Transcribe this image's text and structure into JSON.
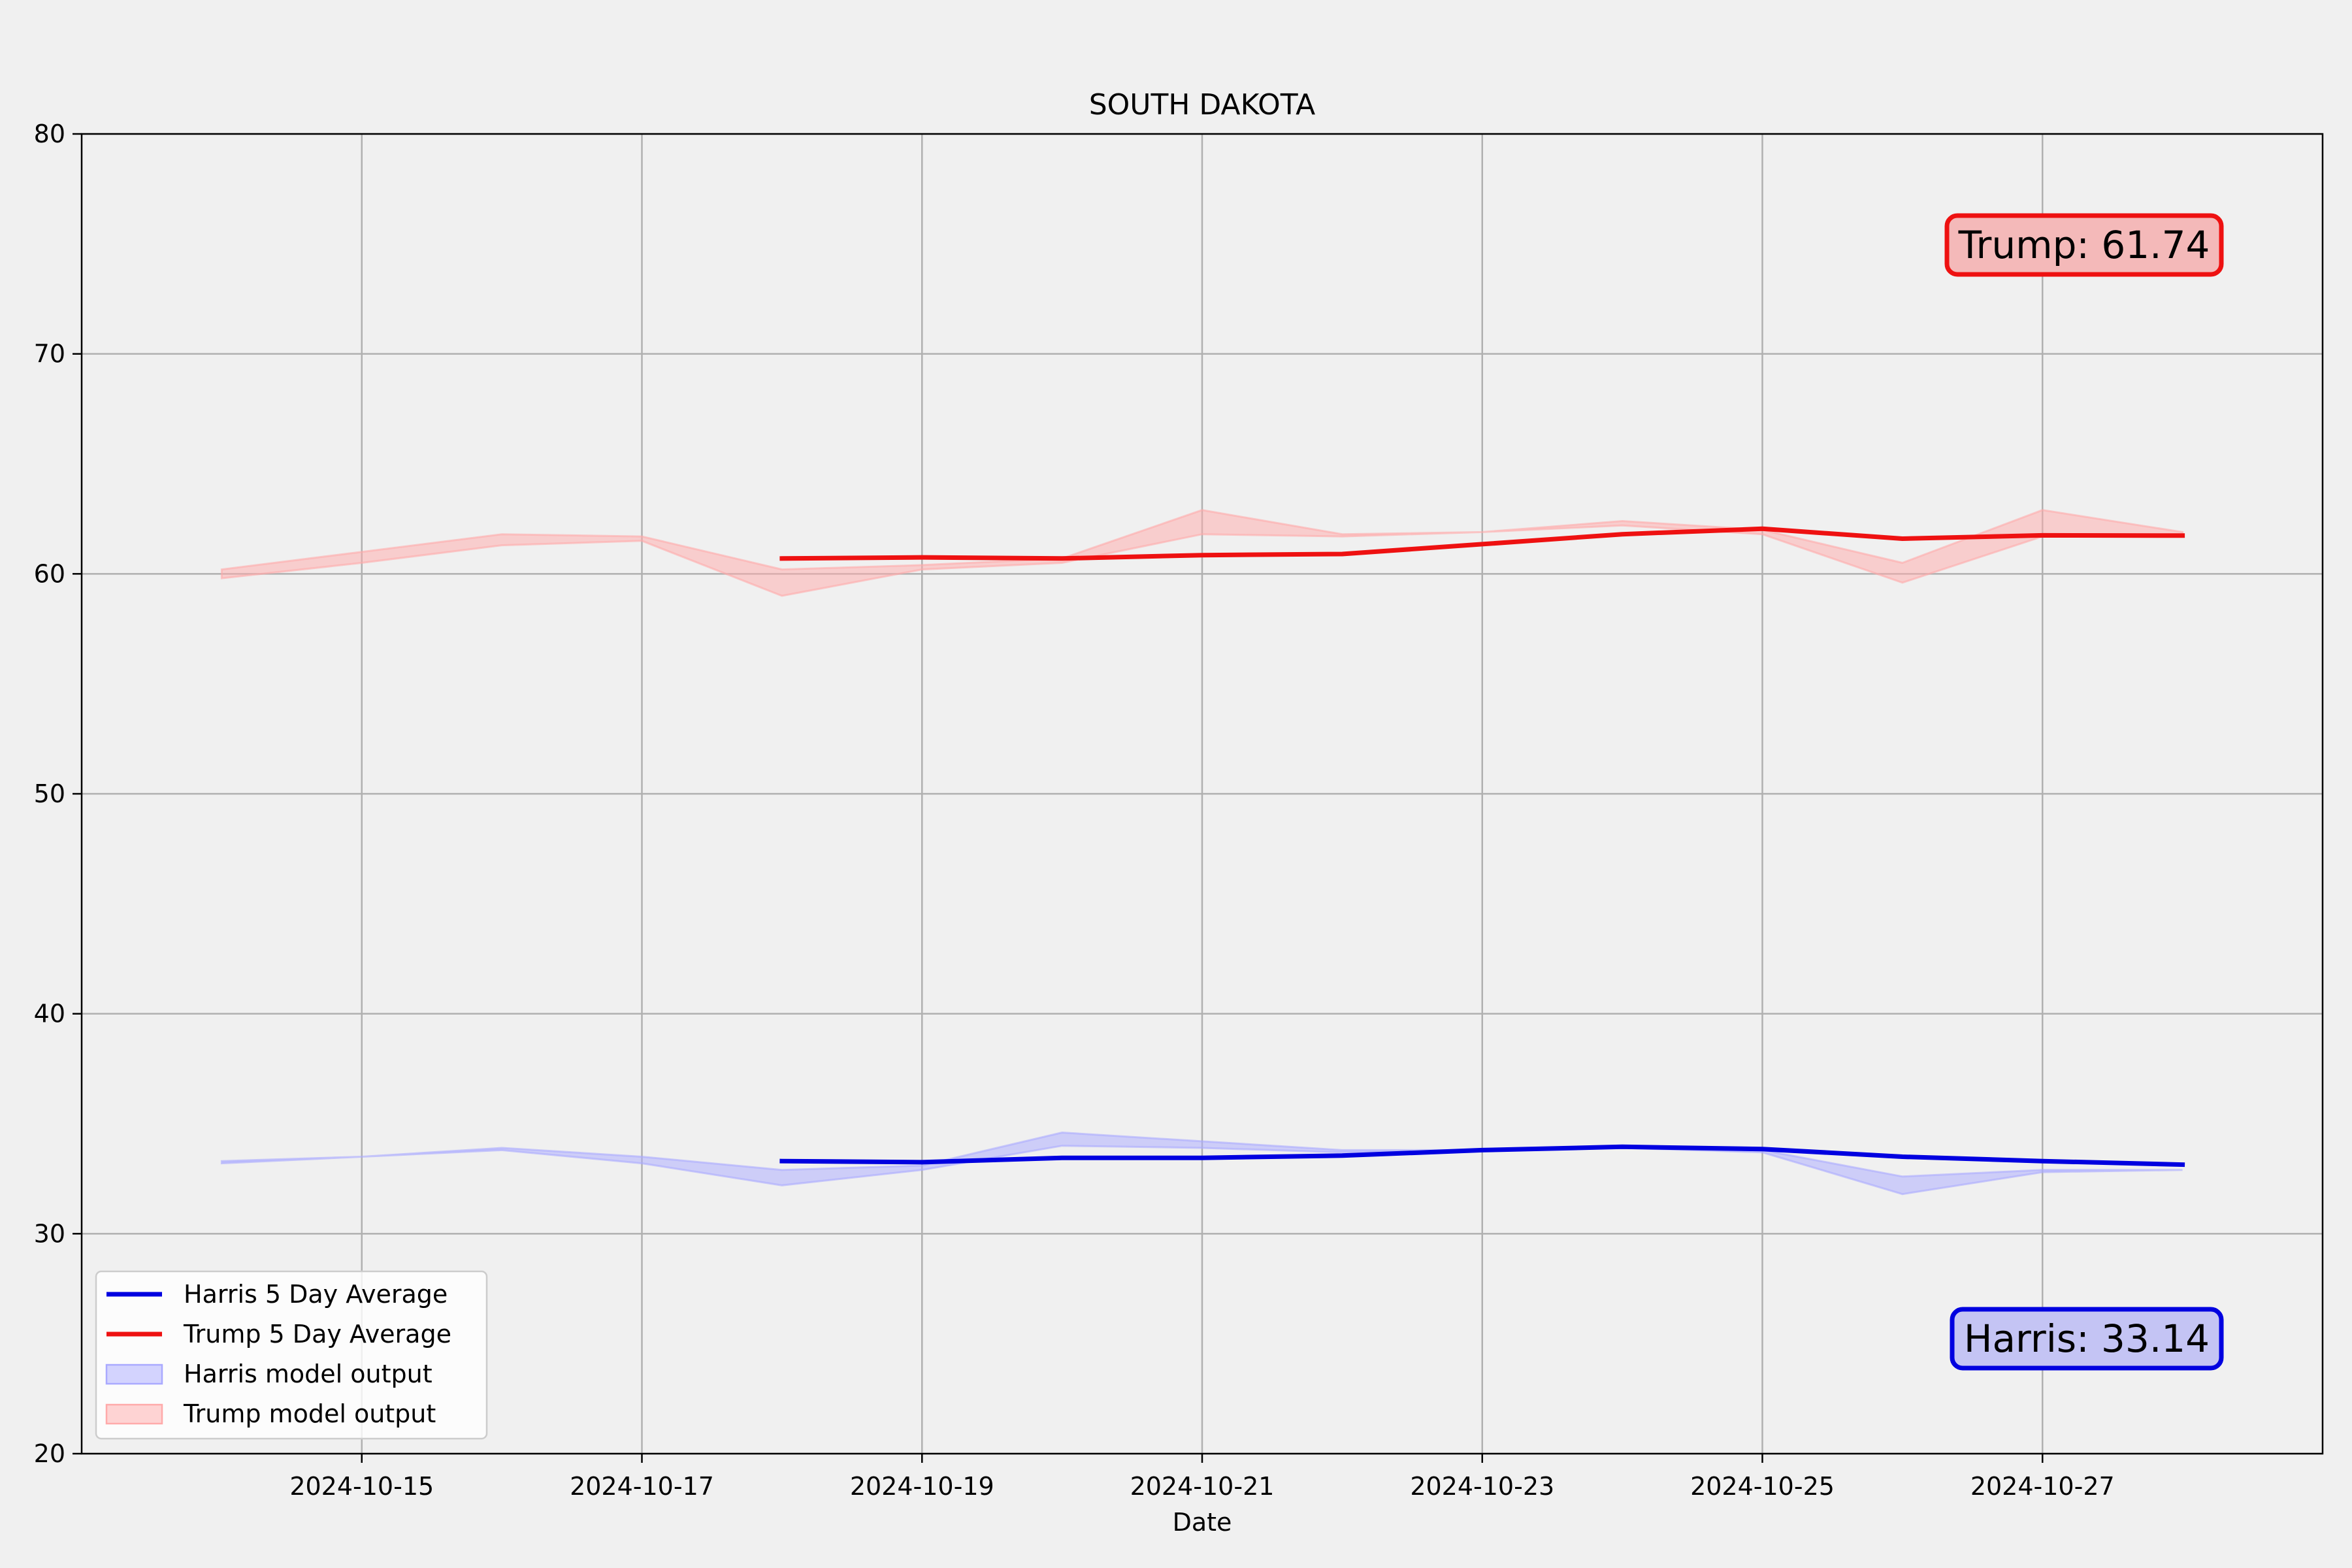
{
  "chart_data": {
    "type": "line",
    "title": "SOUTH DAKOTA",
    "xlabel": "Date",
    "ylabel": "",
    "ylim": [
      20,
      80
    ],
    "yticks": [
      "20",
      "30",
      "40",
      "50",
      "60",
      "70",
      "80"
    ],
    "xlim": [
      "2024-10-13",
      "2024-10-29"
    ],
    "xticks": [
      "2024-10-15",
      "2024-10-17",
      "2024-10-19",
      "2024-10-21",
      "2024-10-23",
      "2024-10-25",
      "2024-10-27"
    ],
    "grid": true,
    "legend_position": "lower-left",
    "series": [
      {
        "name": "Harris 5 Day Average",
        "color": "#0000e0",
        "x": [
          "2024-10-18",
          "2024-10-19",
          "2024-10-20",
          "2024-10-21",
          "2024-10-22",
          "2024-10-23",
          "2024-10-24",
          "2024-10-25",
          "2024-10-26",
          "2024-10-27",
          "2024-10-28"
        ],
        "values": [
          33.3,
          33.25,
          33.45,
          33.45,
          33.55,
          33.8,
          33.95,
          33.85,
          33.5,
          33.3,
          33.14
        ]
      },
      {
        "name": "Trump 5 Day Average",
        "color": "#ee1111",
        "x": [
          "2024-10-18",
          "2024-10-19",
          "2024-10-20",
          "2024-10-21",
          "2024-10-22",
          "2024-10-23",
          "2024-10-24",
          "2024-10-25",
          "2024-10-26",
          "2024-10-27",
          "2024-10-28"
        ],
        "values": [
          60.7,
          60.75,
          60.7,
          60.85,
          60.9,
          61.35,
          61.8,
          62.05,
          61.6,
          61.75,
          61.74
        ]
      }
    ],
    "bands": [
      {
        "name": "Harris model output",
        "fill": "#aaaaff",
        "x": [
          "2024-10-14",
          "2024-10-15",
          "2024-10-16",
          "2024-10-17",
          "2024-10-18",
          "2024-10-19",
          "2024-10-20",
          "2024-10-21",
          "2024-10-22",
          "2024-10-23",
          "2024-10-24",
          "2024-10-25",
          "2024-10-26",
          "2024-10-27",
          "2024-10-28"
        ],
        "lower": [
          33.2,
          33.5,
          33.8,
          33.2,
          32.2,
          32.9,
          34.0,
          33.9,
          33.7,
          33.8,
          33.9,
          33.7,
          31.8,
          32.8,
          32.9
        ],
        "upper": [
          33.3,
          33.5,
          33.9,
          33.5,
          32.9,
          33.1,
          34.6,
          34.2,
          33.8,
          33.8,
          34.0,
          33.8,
          32.6,
          32.9,
          32.9
        ]
      },
      {
        "name": "Trump model output",
        "fill": "#ffaaaa",
        "x": [
          "2024-10-14",
          "2024-10-15",
          "2024-10-16",
          "2024-10-17",
          "2024-10-18",
          "2024-10-19",
          "2024-10-20",
          "2024-10-21",
          "2024-10-22",
          "2024-10-23",
          "2024-10-24",
          "2024-10-25",
          "2024-10-26",
          "2024-10-27",
          "2024-10-28"
        ],
        "lower": [
          59.8,
          60.5,
          61.3,
          61.5,
          59.0,
          60.2,
          60.5,
          61.8,
          61.7,
          61.9,
          62.2,
          61.8,
          59.6,
          61.7,
          61.7
        ],
        "upper": [
          60.2,
          61.0,
          61.8,
          61.7,
          60.2,
          60.4,
          60.7,
          62.9,
          61.8,
          61.9,
          62.4,
          62.0,
          60.5,
          62.9,
          61.9
        ]
      }
    ],
    "annotations": [
      {
        "name": "trump",
        "text": "Trump: 61.74",
        "color": "#ee1111",
        "fill": "#f4b9b9"
      },
      {
        "name": "harris",
        "text": "Harris: 33.14",
        "color": "#0000e0",
        "fill": "#c4c4f4"
      }
    ]
  }
}
